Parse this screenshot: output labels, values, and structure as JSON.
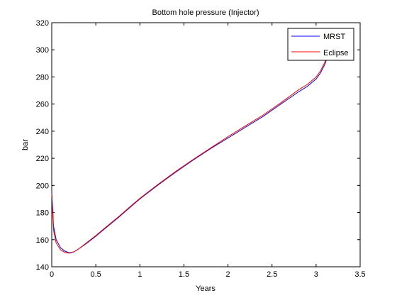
{
  "chart_data": {
    "type": "line",
    "title": "Bottom hole pressure (Injector)",
    "xlabel": "Years",
    "ylabel": "bar",
    "xlim": [
      0,
      3.5
    ],
    "ylim": [
      140,
      320
    ],
    "xticks": [
      0,
      0.5,
      1,
      1.5,
      2,
      2.5,
      3,
      3.5
    ],
    "xtick_labels": [
      "0",
      "0.5",
      "1",
      "1.5",
      "2",
      "2.5",
      "3",
      "3.5"
    ],
    "yticks": [
      140,
      160,
      180,
      200,
      220,
      240,
      260,
      280,
      300,
      320
    ],
    "ytick_labels": [
      "140",
      "160",
      "180",
      "200",
      "220",
      "240",
      "260",
      "280",
      "300",
      "320"
    ],
    "grid": false,
    "legend_position": "top-right",
    "series": [
      {
        "name": "MRST",
        "color": "#0000ff",
        "x": [
          0,
          0.02,
          0.05,
          0.1,
          0.15,
          0.2,
          0.25,
          0.3,
          0.4,
          0.5,
          0.6,
          0.75,
          0.9,
          1.0,
          1.2,
          1.4,
          1.5,
          1.6,
          1.8,
          2.0,
          2.2,
          2.4,
          2.5,
          2.6,
          2.8,
          2.9,
          3.0,
          3.05,
          3.1,
          3.12
        ],
        "values": [
          196,
          170,
          160,
          154,
          151.5,
          150.3,
          151,
          153,
          157.5,
          162.5,
          168,
          176,
          184.5,
          190,
          200,
          209.5,
          214,
          218.5,
          227,
          235,
          243,
          251,
          255.5,
          260,
          269,
          273,
          278.5,
          283,
          289.5,
          293
        ]
      },
      {
        "name": "Eclipse",
        "color": "#ff0000",
        "x": [
          0,
          0.02,
          0.05,
          0.1,
          0.15,
          0.2,
          0.25,
          0.3,
          0.4,
          0.5,
          0.6,
          0.75,
          0.9,
          1.0,
          1.2,
          1.4,
          1.5,
          1.6,
          1.8,
          2.0,
          2.2,
          2.4,
          2.5,
          2.6,
          2.8,
          2.9,
          3.0,
          3.05,
          3.1,
          3.12
        ],
        "values": [
          194,
          167,
          157.5,
          152.5,
          150.5,
          150,
          151,
          153,
          158,
          163,
          168.5,
          176.5,
          185,
          190.5,
          200.5,
          210,
          214.5,
          219,
          227.5,
          236,
          244,
          252,
          256.5,
          261,
          270.5,
          274.5,
          280,
          284.5,
          291,
          294
        ]
      }
    ]
  }
}
